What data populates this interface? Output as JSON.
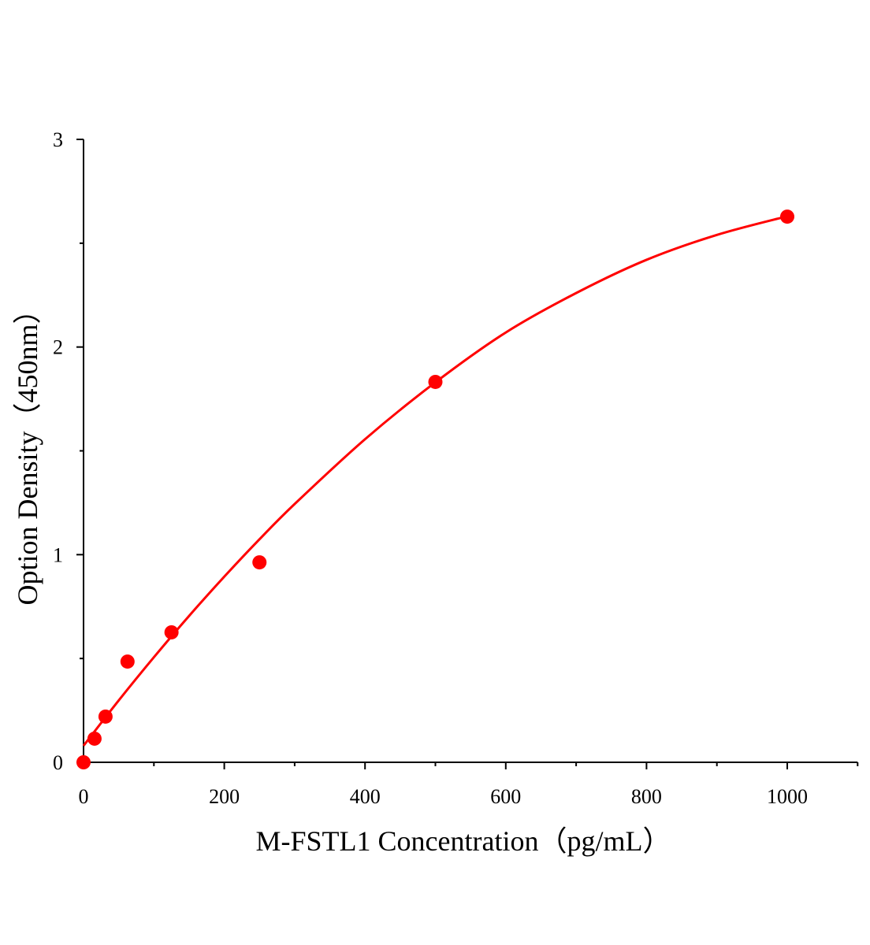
{
  "chart_data": {
    "type": "scatter",
    "title": "",
    "xlabel": "M-FSTL1 Concentration（pg/mL）",
    "ylabel": "Option Density（450nm）",
    "xlim": [
      0,
      1100
    ],
    "ylim": [
      0,
      3
    ],
    "xticks": [
      0,
      200,
      400,
      600,
      800,
      1000
    ],
    "xtick_labels": [
      "0",
      "200",
      "400",
      "600",
      "800",
      "1000"
    ],
    "x_minor_ticks": [
      100,
      300,
      500,
      700,
      900,
      1100
    ],
    "yticks": [
      0,
      1,
      2,
      3
    ],
    "ytick_labels": [
      "0",
      "1",
      "2",
      "3"
    ],
    "y_minor_ticks": [
      0.5,
      1.5,
      2.5
    ],
    "grid": false,
    "color": "#ff0000",
    "series": [
      {
        "kind": "points",
        "x": [
          0,
          15.6,
          31.25,
          62.5,
          125,
          250,
          500,
          1000
        ],
        "y": [
          0.0,
          0.114,
          0.22,
          0.485,
          0.626,
          0.963,
          1.832,
          2.628
        ]
      },
      {
        "kind": "fit-curve",
        "x": [
          0,
          50,
          100,
          150,
          200,
          250,
          300,
          400,
          500,
          600,
          700,
          800,
          900,
          1000
        ],
        "y": [
          0.08,
          0.298,
          0.506,
          0.705,
          0.894,
          1.074,
          1.244,
          1.556,
          1.83,
          2.07,
          2.26,
          2.42,
          2.54,
          2.63
        ]
      }
    ]
  }
}
